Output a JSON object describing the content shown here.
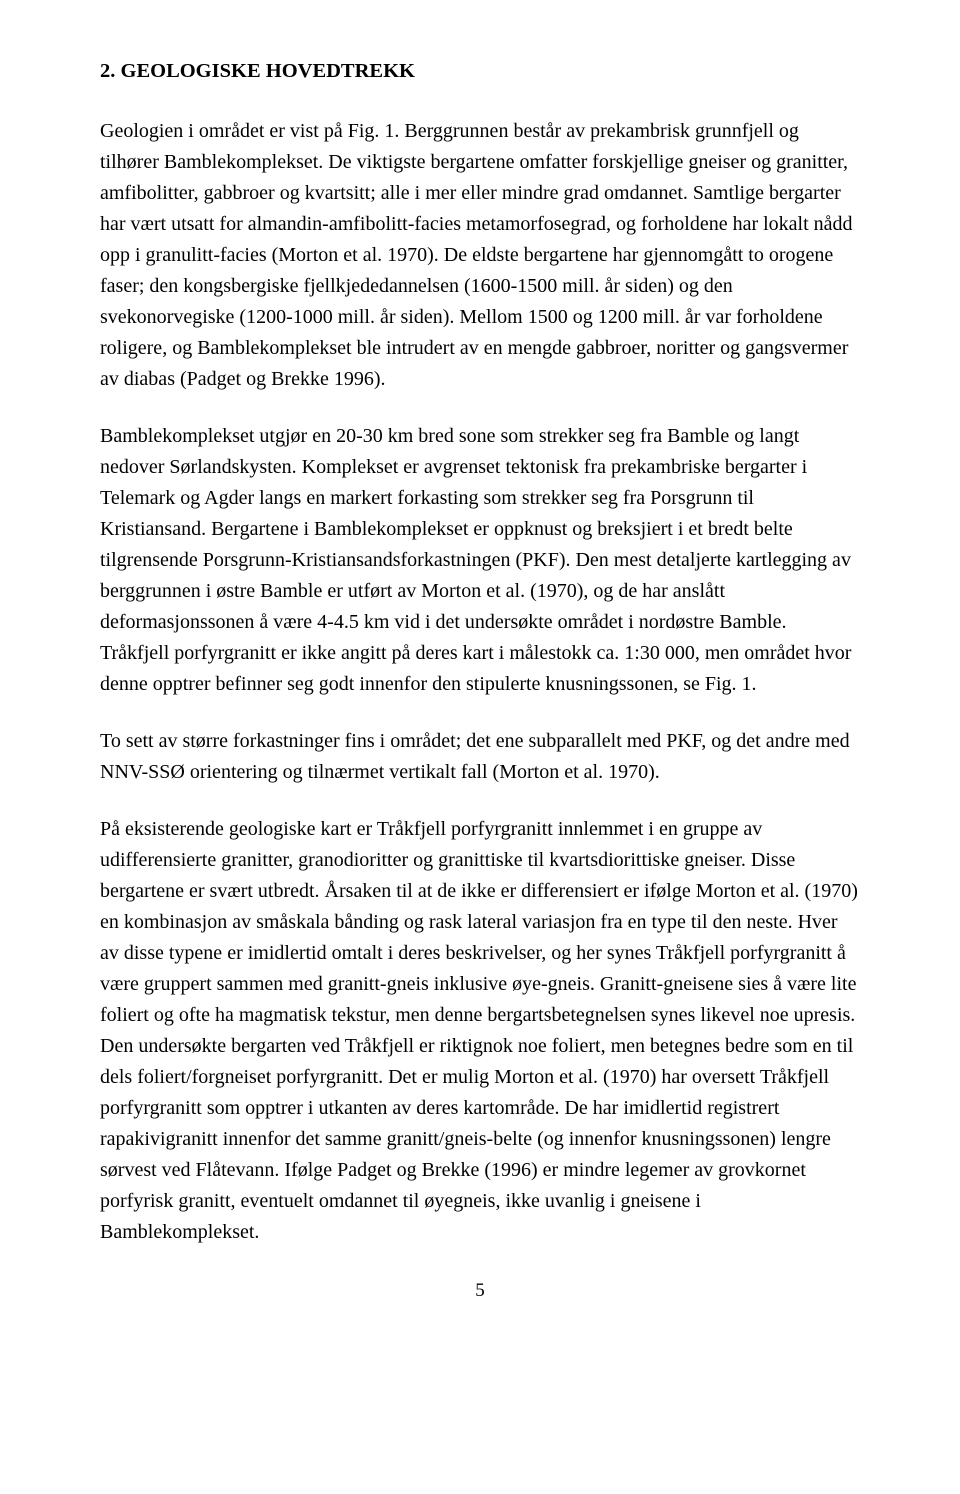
{
  "heading": "2.  GEOLOGISKE HOVEDTREKK",
  "p1": "Geologien i området er vist på Fig. 1. Berggrunnen består av prekambrisk grunnfjell og tilhører Bamblekomplekset. De viktigste bergartene omfatter forskjellige gneiser og granitter, amfibolitter, gabbroer og kvartsitt; alle i mer eller mindre grad omdannet. Samtlige bergarter har vært utsatt for almandin-amfibolitt-facies metamorfosegrad, og forholdene har lokalt nådd opp i granulitt-facies (Morton et al. 1970). De eldste bergartene har gjennomgått to orogene faser; den kongsbergiske fjellkjededannelsen (1600-1500 mill. år siden) og den svekonorvegiske (1200-1000 mill. år siden). Mellom 1500 og 1200 mill. år var forholdene roligere, og Bamblekomplekset ble intrudert av en mengde gabbroer, noritter og gangsvermer av diabas (Padget og Brekke 1996).",
  "p2": "Bamblekomplekset utgjør en 20-30 km bred sone som strekker seg fra Bamble og langt nedover Sørlandskysten. Komplekset er avgrenset tektonisk fra prekambriske bergarter i Telemark og Agder langs en markert forkasting som strekker seg fra Porsgrunn til Kristiansand. Bergartene i Bamblekomplekset er oppknust og breksjiert i et bredt belte tilgrensende Porsgrunn-Kristiansandsforkastningen (PKF). Den mest detaljerte kartlegging av berggrunnen i østre Bamble er utført av Morton et al. (1970), og de har anslått deformasjonssonen å være 4-4.5 km vid i det undersøkte området i nordøstre Bamble. Tråkfjell porfyrgranitt er ikke angitt på deres kart i målestokk ca. 1:30 000, men området hvor denne opptrer befinner seg godt innenfor den stipulerte knusningssonen, se Fig. 1.",
  "p3": "To sett av større forkastninger fins i området; det ene subparallelt med PKF, og det andre med NNV-SSØ orientering og tilnærmet vertikalt fall (Morton et al. 1970).",
  "p4": "På eksisterende geologiske kart er Tråkfjell porfyrgranitt innlemmet i en gruppe av udifferensierte granitter, granodioritter og granittiske til kvartsdiorittiske gneiser. Disse bergartene er svært utbredt. Årsaken til at de ikke er differensiert er ifølge Morton et al. (1970) en kombinasjon av småskala bånding og rask lateral variasjon fra en type til den neste. Hver av disse typene er imidlertid omtalt i deres beskrivelser, og her synes Tråkfjell porfyrgranitt å være gruppert sammen med granitt-gneis inklusive øye-gneis. Granitt-gneisene sies å være lite foliert og ofte ha magmatisk tekstur, men denne bergartsbetegnelsen synes likevel noe upresis. Den undersøkte bergarten ved Tråkfjell er riktignok noe foliert, men betegnes bedre som en til dels foliert/forgneiset porfyrgranitt. Det er mulig Morton et al. (1970) har oversett Tråkfjell porfyrgranitt som opptrer i utkanten av deres kartområde. De har imidlertid registrert rapakivigranitt innenfor det samme granitt/gneis-belte (og innenfor knusningssonen) lengre sørvest ved Flåtevann. Ifølge Padget og Brekke (1996) er mindre legemer av grovkornet porfyrisk granitt, eventuelt omdannet til øyegneis, ikke uvanlig i gneisene i Bamblekomplekset.",
  "pagenum": "5"
}
